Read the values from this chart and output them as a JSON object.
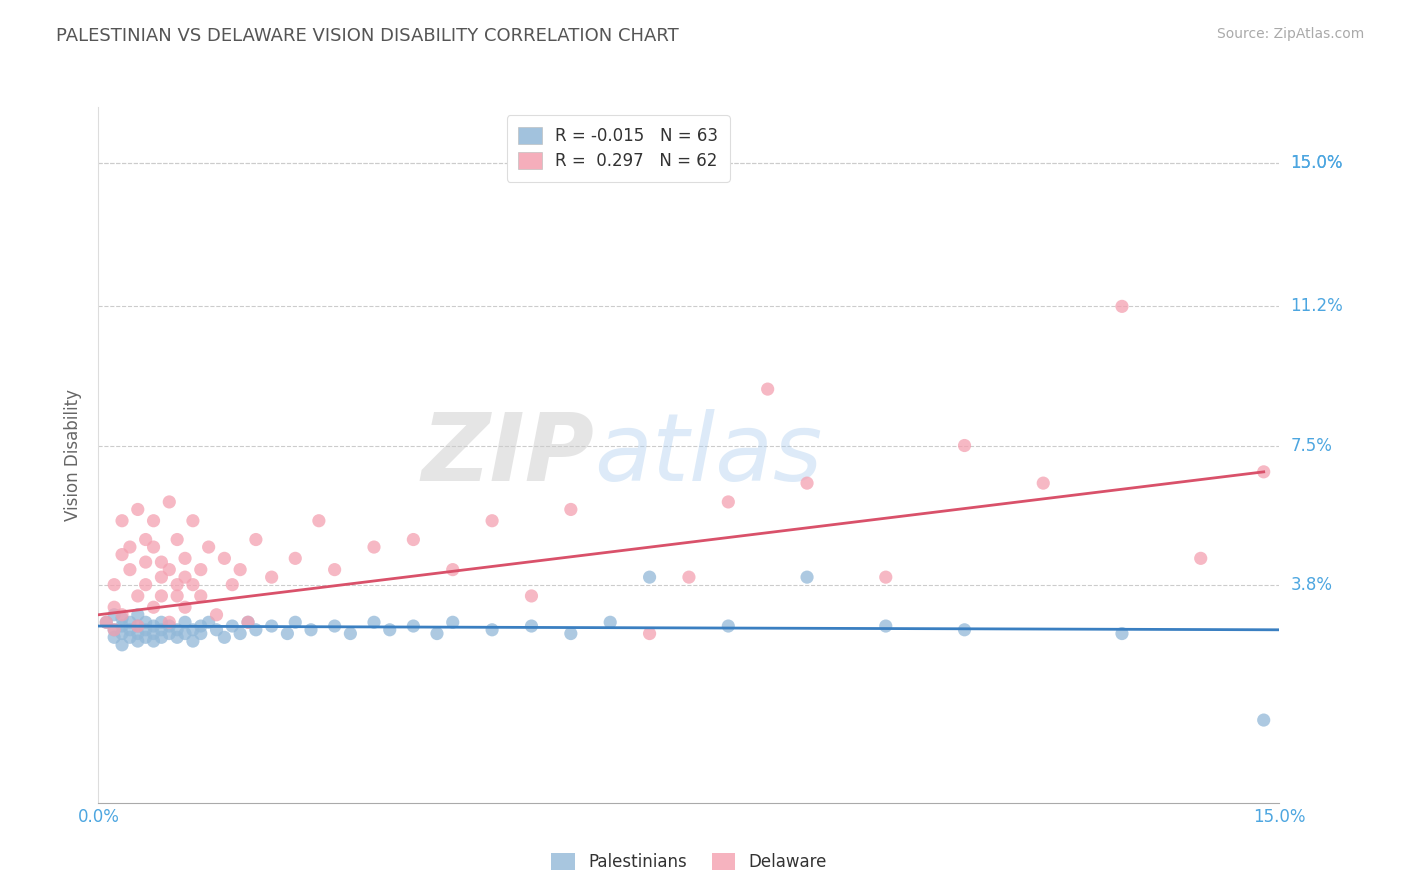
{
  "title": "PALESTINIAN VS DELAWARE VISION DISABILITY CORRELATION CHART",
  "source": "Source: ZipAtlas.com",
  "ylabel": "Vision Disability",
  "y_tick_labels": [
    "15.0%",
    "11.2%",
    "7.5%",
    "3.8%"
  ],
  "y_tick_values": [
    0.15,
    0.112,
    0.075,
    0.038
  ],
  "xlim": [
    0.0,
    0.15
  ],
  "ylim": [
    -0.02,
    0.165
  ],
  "blue_color": "#92b8d8",
  "pink_color": "#f4a0b0",
  "blue_line_color": "#3a7fc1",
  "pink_line_color": "#d9516a",
  "watermark_zip": "ZIP",
  "watermark_atlas": "atlas",
  "title_color": "#555555",
  "source_color": "#aaaaaa",
  "axis_label_color": "#666666",
  "tick_label_color": "#4da6e0",
  "grid_color": "#cccccc",
  "blue_scatter": [
    [
      0.001,
      0.028
    ],
    [
      0.002,
      0.026
    ],
    [
      0.002,
      0.024
    ],
    [
      0.002,
      0.03
    ],
    [
      0.003,
      0.027
    ],
    [
      0.003,
      0.025
    ],
    [
      0.003,
      0.022
    ],
    [
      0.003,
      0.029
    ],
    [
      0.004,
      0.026
    ],
    [
      0.004,
      0.024
    ],
    [
      0.004,
      0.028
    ],
    [
      0.005,
      0.027
    ],
    [
      0.005,
      0.025
    ],
    [
      0.005,
      0.023
    ],
    [
      0.005,
      0.03
    ],
    [
      0.006,
      0.026
    ],
    [
      0.006,
      0.024
    ],
    [
      0.006,
      0.028
    ],
    [
      0.007,
      0.025
    ],
    [
      0.007,
      0.027
    ],
    [
      0.007,
      0.023
    ],
    [
      0.008,
      0.026
    ],
    [
      0.008,
      0.024
    ],
    [
      0.008,
      0.028
    ],
    [
      0.009,
      0.025
    ],
    [
      0.009,
      0.027
    ],
    [
      0.01,
      0.026
    ],
    [
      0.01,
      0.024
    ],
    [
      0.011,
      0.025
    ],
    [
      0.011,
      0.028
    ],
    [
      0.012,
      0.026
    ],
    [
      0.012,
      0.023
    ],
    [
      0.013,
      0.027
    ],
    [
      0.013,
      0.025
    ],
    [
      0.014,
      0.028
    ],
    [
      0.015,
      0.026
    ],
    [
      0.016,
      0.024
    ],
    [
      0.017,
      0.027
    ],
    [
      0.018,
      0.025
    ],
    [
      0.019,
      0.028
    ],
    [
      0.02,
      0.026
    ],
    [
      0.022,
      0.027
    ],
    [
      0.024,
      0.025
    ],
    [
      0.025,
      0.028
    ],
    [
      0.027,
      0.026
    ],
    [
      0.03,
      0.027
    ],
    [
      0.032,
      0.025
    ],
    [
      0.035,
      0.028
    ],
    [
      0.037,
      0.026
    ],
    [
      0.04,
      0.027
    ],
    [
      0.043,
      0.025
    ],
    [
      0.045,
      0.028
    ],
    [
      0.05,
      0.026
    ],
    [
      0.055,
      0.027
    ],
    [
      0.06,
      0.025
    ],
    [
      0.065,
      0.028
    ],
    [
      0.07,
      0.04
    ],
    [
      0.08,
      0.027
    ],
    [
      0.09,
      0.04
    ],
    [
      0.1,
      0.027
    ],
    [
      0.11,
      0.026
    ],
    [
      0.13,
      0.025
    ],
    [
      0.148,
      0.002
    ]
  ],
  "pink_scatter": [
    [
      0.001,
      0.028
    ],
    [
      0.002,
      0.032
    ],
    [
      0.002,
      0.026
    ],
    [
      0.002,
      0.038
    ],
    [
      0.003,
      0.055
    ],
    [
      0.003,
      0.046
    ],
    [
      0.003,
      0.03
    ],
    [
      0.004,
      0.042
    ],
    [
      0.004,
      0.048
    ],
    [
      0.005,
      0.035
    ],
    [
      0.005,
      0.058
    ],
    [
      0.005,
      0.027
    ],
    [
      0.006,
      0.044
    ],
    [
      0.006,
      0.038
    ],
    [
      0.006,
      0.05
    ],
    [
      0.007,
      0.032
    ],
    [
      0.007,
      0.048
    ],
    [
      0.007,
      0.055
    ],
    [
      0.008,
      0.04
    ],
    [
      0.008,
      0.035
    ],
    [
      0.008,
      0.044
    ],
    [
      0.009,
      0.06
    ],
    [
      0.009,
      0.042
    ],
    [
      0.009,
      0.028
    ],
    [
      0.01,
      0.038
    ],
    [
      0.01,
      0.05
    ],
    [
      0.01,
      0.035
    ],
    [
      0.011,
      0.045
    ],
    [
      0.011,
      0.032
    ],
    [
      0.011,
      0.04
    ],
    [
      0.012,
      0.055
    ],
    [
      0.012,
      0.038
    ],
    [
      0.013,
      0.042
    ],
    [
      0.013,
      0.035
    ],
    [
      0.014,
      0.048
    ],
    [
      0.015,
      0.03
    ],
    [
      0.016,
      0.045
    ],
    [
      0.017,
      0.038
    ],
    [
      0.018,
      0.042
    ],
    [
      0.019,
      0.028
    ],
    [
      0.02,
      0.05
    ],
    [
      0.022,
      0.04
    ],
    [
      0.025,
      0.045
    ],
    [
      0.028,
      0.055
    ],
    [
      0.03,
      0.042
    ],
    [
      0.035,
      0.048
    ],
    [
      0.04,
      0.05
    ],
    [
      0.045,
      0.042
    ],
    [
      0.05,
      0.055
    ],
    [
      0.055,
      0.035
    ],
    [
      0.06,
      0.058
    ],
    [
      0.07,
      0.025
    ],
    [
      0.075,
      0.04
    ],
    [
      0.08,
      0.06
    ],
    [
      0.085,
      0.09
    ],
    [
      0.09,
      0.065
    ],
    [
      0.1,
      0.04
    ],
    [
      0.11,
      0.075
    ],
    [
      0.12,
      0.065
    ],
    [
      0.13,
      0.112
    ],
    [
      0.14,
      0.045
    ],
    [
      0.148,
      0.068
    ]
  ],
  "blue_line": {
    "x0": 0.0,
    "x1": 0.15,
    "y0": 0.027,
    "y1": 0.026
  },
  "pink_line": {
    "x0": 0.0,
    "x1": 0.148,
    "y0": 0.03,
    "y1": 0.068
  },
  "legend_entries": [
    {
      "label_r": "R = ",
      "r_val": "-0.015",
      "label_n": "  N = 63"
    },
    {
      "label_r": "R =  ",
      "r_val": "0.297",
      "label_n": "  N = 62"
    }
  ]
}
